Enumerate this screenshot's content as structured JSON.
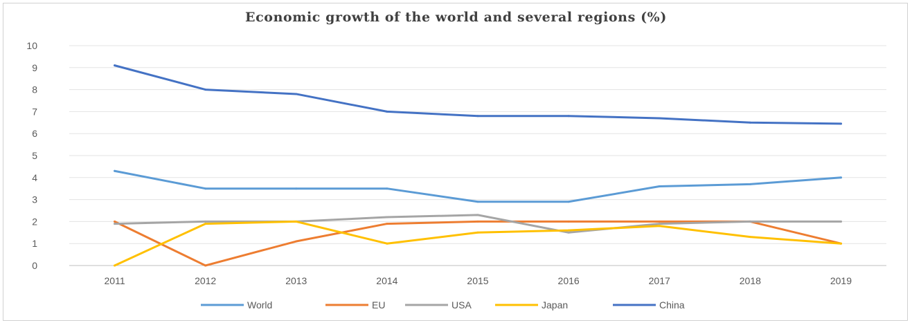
{
  "chart_data": {
    "type": "line",
    "title": "Economic growth of the world and several regions (%)",
    "xlabel": "",
    "ylabel": "",
    "categories": [
      "2011",
      "2012",
      "2013",
      "2014",
      "2015",
      "2016",
      "2017",
      "2018",
      "2019"
    ],
    "ylim": [
      0,
      10
    ],
    "yticks": [
      0,
      1,
      2,
      3,
      4,
      5,
      6,
      7,
      8,
      9,
      10
    ],
    "grid": true,
    "legend_position": "bottom",
    "series": [
      {
        "name": "World",
        "color": "#5b9bd5",
        "values": [
          4.3,
          3.5,
          3.5,
          3.5,
          2.9,
          2.9,
          3.6,
          3.7,
          4.0
        ]
      },
      {
        "name": "EU",
        "color": "#ed7d31",
        "values": [
          2.0,
          0.0,
          1.1,
          1.9,
          2.0,
          2.0,
          2.0,
          2.0,
          1.0
        ]
      },
      {
        "name": "USA",
        "color": "#a5a5a5",
        "values": [
          1.9,
          2.0,
          2.0,
          2.2,
          2.3,
          1.5,
          1.9,
          2.0,
          2.0
        ]
      },
      {
        "name": "Japan",
        "color": "#ffc000",
        "values": [
          0.0,
          1.9,
          2.0,
          1.0,
          1.5,
          1.6,
          1.8,
          1.3,
          1.0
        ]
      },
      {
        "name": "China",
        "color": "#4472c4",
        "values": [
          9.1,
          8.0,
          7.8,
          7.0,
          6.8,
          6.8,
          6.7,
          6.5,
          6.45
        ]
      }
    ]
  }
}
